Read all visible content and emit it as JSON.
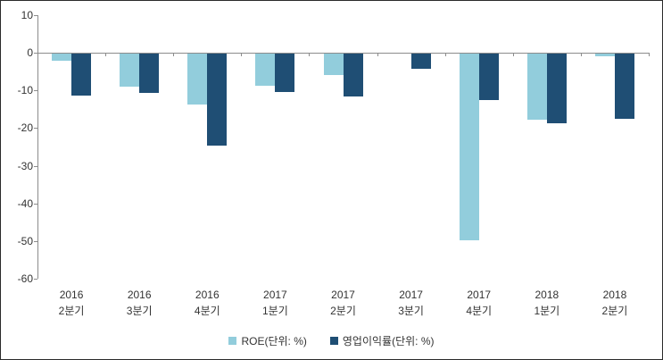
{
  "chart_data": {
    "type": "bar",
    "title": "",
    "xlabel": "",
    "ylabel": "",
    "categories": [
      {
        "year": "2016",
        "quarter": "2분기"
      },
      {
        "year": "2016",
        "quarter": "3분기"
      },
      {
        "year": "2016",
        "quarter": "4분기"
      },
      {
        "year": "2017",
        "quarter": "1분기"
      },
      {
        "year": "2017",
        "quarter": "2분기"
      },
      {
        "year": "2017",
        "quarter": "3분기"
      },
      {
        "year": "2017",
        "quarter": "4분기"
      },
      {
        "year": "2018",
        "quarter": "1분기"
      },
      {
        "year": "2018",
        "quarter": "2분기"
      }
    ],
    "series": [
      {
        "name": "ROE(단위: %)",
        "color": "#92CDDC",
        "values": [
          -1.8,
          -8.8,
          -13.5,
          -8.4,
          -5.7,
          0,
          -49.6,
          -17.6,
          -0.7
        ]
      },
      {
        "name": "영업이익률(단위: %)",
        "color": "#1F4E74",
        "values": [
          -11.2,
          -10.5,
          -24.3,
          -10.1,
          -11.3,
          -4.0,
          -12.3,
          -18.5,
          -17.3
        ]
      }
    ],
    "ylim": [
      -60,
      10
    ],
    "yticks": [
      10,
      0,
      -10,
      -20,
      -30,
      -40,
      -50,
      -60
    ],
    "grid": false,
    "legend_position": "bottom"
  },
  "style": {
    "axis_color": "#8c8c8c",
    "text_color": "#333333",
    "background": "#ffffff",
    "border_color": "#2b2b2b"
  }
}
